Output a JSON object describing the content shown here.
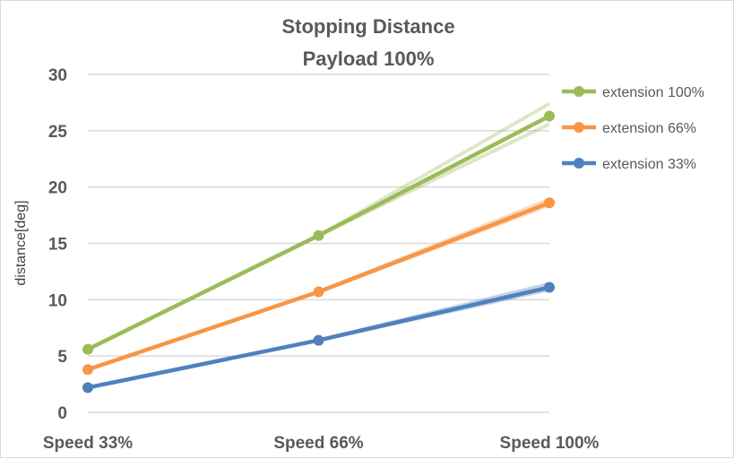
{
  "chart_data": {
    "type": "line",
    "title": [
      "Stopping Distance",
      "Payload 100%"
    ],
    "xlabel": "",
    "ylabel": "distance[deg]",
    "categories": [
      "Speed 33%",
      "Speed 66%",
      "Speed 100%"
    ],
    "ylim": [
      0,
      30
    ],
    "yticks": [
      0,
      5,
      10,
      15,
      20,
      25,
      30
    ],
    "grid": true,
    "legend": "right",
    "series": [
      {
        "name": "extension 100%",
        "color": "#9bbb59",
        "values": [
          5.6,
          15.7,
          26.3
        ],
        "band": {
          "upper": [
            null,
            15.7,
            27.4
          ],
          "lower": [
            null,
            15.7,
            25.6
          ]
        }
      },
      {
        "name": "extension 66%",
        "color": "#f79646",
        "values": [
          3.8,
          10.7,
          18.6
        ],
        "band": {
          "upper": [
            null,
            10.7,
            18.9
          ],
          "lower": [
            null,
            10.7,
            18.4
          ]
        }
      },
      {
        "name": "extension 33%",
        "color": "#4f81bd",
        "values": [
          2.2,
          6.4,
          11.1
        ],
        "band": {
          "upper": [
            null,
            6.4,
            11.4
          ],
          "lower": [
            null,
            6.4,
            10.9
          ]
        }
      }
    ]
  }
}
